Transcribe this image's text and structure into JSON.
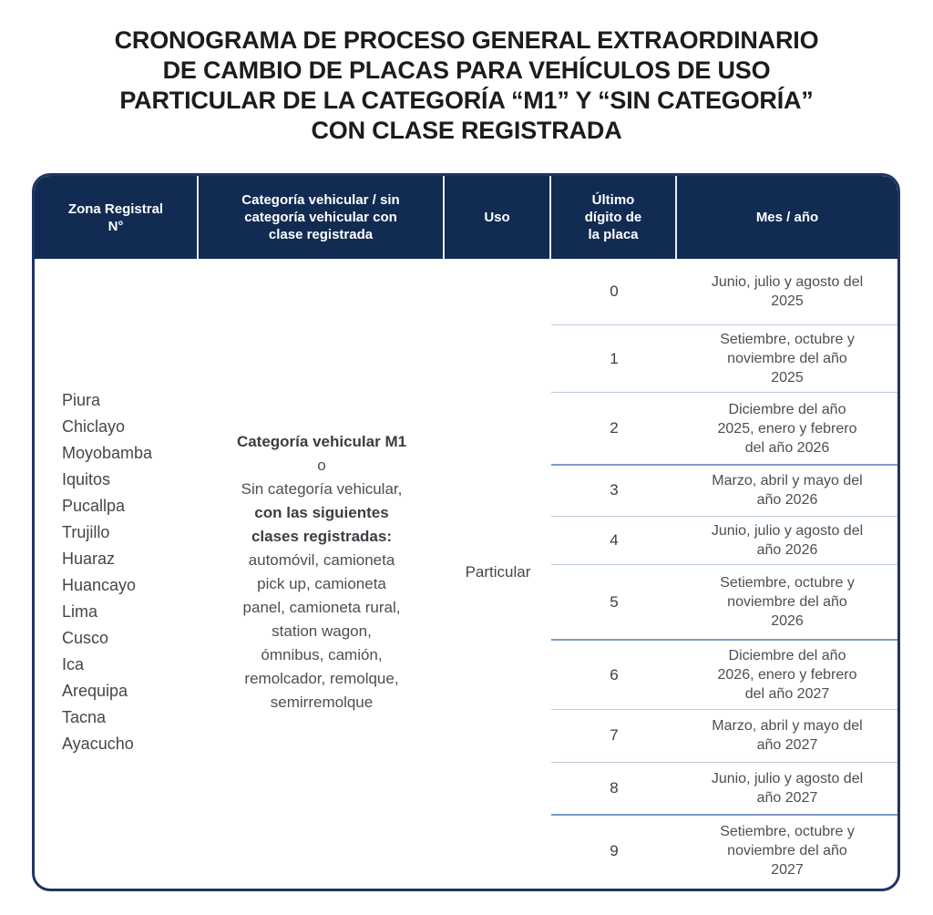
{
  "title": "CRONOGRAMA DE PROCESO GENERAL EXTRAORDINARIO\nDE CAMBIO DE PLACAS PARA VEHÍCULOS DE USO\nPARTICULAR DE LA CATEGORÍA “M1” Y “SIN CATEGORÍA”\nCON CLASE REGISTRADA",
  "colors": {
    "header_bg": "#122b52",
    "table_border": "#203463",
    "separator_light": "#b9cadf",
    "separator_strong": "#7d9ac4",
    "title_color": "#1c1c1e",
    "body_text": "#4b4f54"
  },
  "table": {
    "headers": {
      "zona": "Zona Registral\nN°",
      "categoria": "Categoría vehicular / sin\ncategoría vehicular con\nclase registrada",
      "uso": "Uso",
      "digito": "Último\ndígito de\nla placa",
      "mes": "Mes / año"
    },
    "zonas": [
      "Piura",
      "Chiclayo",
      "Moyobamba",
      "Iquitos",
      "Pucallpa",
      "Trujillo",
      "Huaraz",
      "Huancayo",
      "Lima",
      "Cusco",
      "Ica",
      "Arequipa",
      "Tacna",
      "Ayacucho"
    ],
    "categoria_lines": [
      {
        "text": "Categoría vehicular M1",
        "bold": true
      },
      {
        "text": "o",
        "bold": false
      },
      {
        "text": "Sin categoría vehicular,",
        "bold": false
      },
      {
        "text": "con las siguientes",
        "bold": true
      },
      {
        "text": "clases registradas:",
        "bold": true
      },
      {
        "text": "automóvil, camioneta",
        "bold": false
      },
      {
        "text": "pick up, camioneta",
        "bold": false
      },
      {
        "text": "panel, camioneta rural,",
        "bold": false
      },
      {
        "text": "station wagon,",
        "bold": false
      },
      {
        "text": "ómnibus, camión,",
        "bold": false
      },
      {
        "text": "remolcador, remolque,",
        "bold": false
      },
      {
        "text": "semirremolque",
        "bold": false
      }
    ],
    "uso": "Particular",
    "rows": [
      {
        "digit": "0",
        "months": "Junio, julio y agosto del\n2025",
        "group_end": false
      },
      {
        "digit": "1",
        "months": "Setiembre, octubre y\nnoviembre del año\n2025",
        "group_end": false
      },
      {
        "digit": "2",
        "months": "Diciembre del año\n2025, enero y febrero\ndel año 2026",
        "group_end": true
      },
      {
        "digit": "3",
        "months": "Marzo, abril y mayo del\naño 2026",
        "group_end": false
      },
      {
        "digit": "4",
        "months": "Junio, julio y agosto del\naño 2026",
        "group_end": false
      },
      {
        "digit": "5",
        "months": "Setiembre, octubre y\nnoviembre del año\n2026",
        "group_end": true
      },
      {
        "digit": "6",
        "months": "Diciembre del año\n2026, enero y febrero\ndel año 2027",
        "group_end": false
      },
      {
        "digit": "7",
        "months": "Marzo, abril y mayo del\naño 2027",
        "group_end": false
      },
      {
        "digit": "8",
        "months": "Junio, julio y agosto del\naño 2027",
        "group_end": true
      },
      {
        "digit": "9",
        "months": "Setiembre, octubre y\nnoviembre del año\n2027",
        "group_end": false
      }
    ]
  }
}
